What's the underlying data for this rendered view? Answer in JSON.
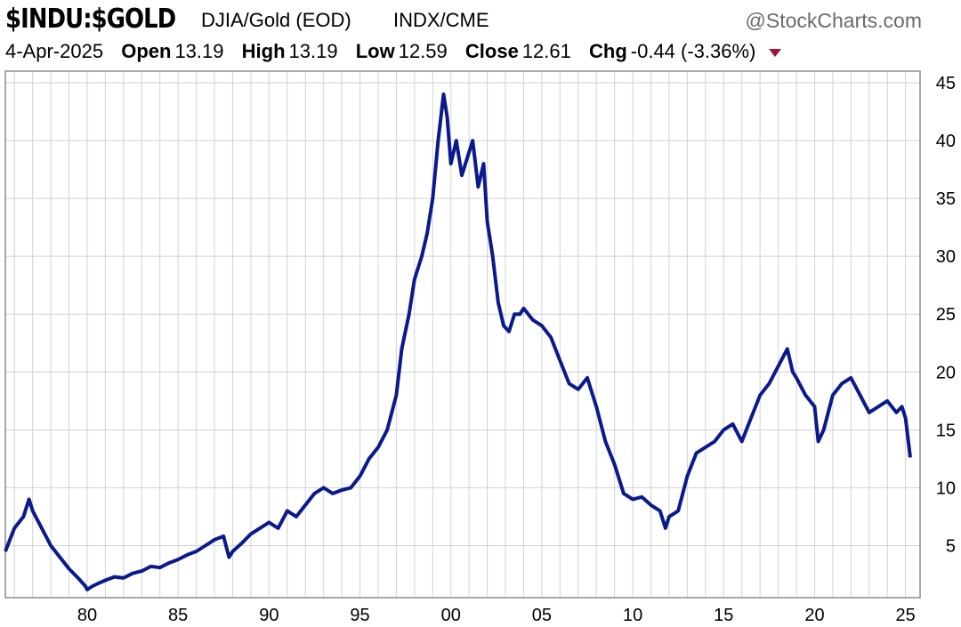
{
  "header": {
    "symbol": "$INDU:$GOLD",
    "description": "DJIA/Gold (EOD)",
    "exchange": "INDX/CME",
    "credit": "@StockCharts.com",
    "date": "4-Apr-2025",
    "open_label": "Open",
    "open": "13.19",
    "high_label": "High",
    "high": "13.19",
    "low_label": "Low",
    "low": "12.59",
    "close_label": "Close",
    "close": "12.61",
    "chg_label": "Chg",
    "chg": "-0.44 (-3.36%)",
    "chg_direction_color": "#a0143c"
  },
  "chart_data": {
    "type": "line",
    "title": "$INDU:$GOLD",
    "series": [
      {
        "color": "#0a1a8c",
        "x": [
          1975.5,
          1976.0,
          1976.5,
          1976.8,
          1977.0,
          1977.5,
          1978.0,
          1978.5,
          1979.0,
          1979.5,
          1979.9,
          1980.0,
          1980.3,
          1980.7,
          1981.0,
          1981.5,
          1982.0,
          1982.5,
          1983.0,
          1983.5,
          1984.0,
          1984.5,
          1985.0,
          1985.5,
          1986.0,
          1986.5,
          1987.0,
          1987.5,
          1987.8,
          1988.0,
          1988.5,
          1989.0,
          1989.5,
          1990.0,
          1990.5,
          1991.0,
          1991.5,
          1992.0,
          1992.5,
          1993.0,
          1993.5,
          1994.0,
          1994.5,
          1995.0,
          1995.5,
          1996.0,
          1996.5,
          1997.0,
          1997.3,
          1997.7,
          1998.0,
          1998.4,
          1998.7,
          1999.0,
          1999.3,
          1999.6,
          1999.8,
          2000.0,
          2000.3,
          2000.6,
          2000.9,
          2001.2,
          2001.5,
          2001.8,
          2002.0,
          2002.3,
          2002.6,
          2002.9,
          2003.2,
          2003.5,
          2003.8,
          2004.0,
          2004.5,
          2005.0,
          2005.5,
          2006.0,
          2006.5,
          2007.0,
          2007.5,
          2008.0,
          2008.5,
          2009.0,
          2009.5,
          2010.0,
          2010.5,
          2011.0,
          2011.5,
          2011.8,
          2012.0,
          2012.5,
          2013.0,
          2013.5,
          2014.0,
          2014.5,
          2015.0,
          2015.5,
          2016.0,
          2016.5,
          2017.0,
          2017.5,
          2018.0,
          2018.5,
          2018.8,
          2019.0,
          2019.5,
          2020.0,
          2020.2,
          2020.5,
          2021.0,
          2021.5,
          2022.0,
          2022.5,
          2023.0,
          2023.5,
          2024.0,
          2024.5,
          2024.8,
          2025.0,
          2025.26
        ],
        "y": [
          4.5,
          6.5,
          7.5,
          9.0,
          8.0,
          6.5,
          5.0,
          4.0,
          3.0,
          2.2,
          1.5,
          1.2,
          1.5,
          1.8,
          2.0,
          2.3,
          2.2,
          2.6,
          2.8,
          3.2,
          3.1,
          3.5,
          3.8,
          4.2,
          4.5,
          5.0,
          5.5,
          5.8,
          4.0,
          4.5,
          5.2,
          6.0,
          6.5,
          7.0,
          6.5,
          8.0,
          7.5,
          8.5,
          9.5,
          10.0,
          9.5,
          9.8,
          10.0,
          11.0,
          12.5,
          13.5,
          15.0,
          18.0,
          22.0,
          25.0,
          28.0,
          30.0,
          32.0,
          35.0,
          40.0,
          44.0,
          42.0,
          38.0,
          40.0,
          37.0,
          38.5,
          40.0,
          36.0,
          38.0,
          33.0,
          30.0,
          26.0,
          24.0,
          23.5,
          25.0,
          25.0,
          25.5,
          24.5,
          24.0,
          23.0,
          21.0,
          19.0,
          18.5,
          19.5,
          17.0,
          14.0,
          12.0,
          9.5,
          9.0,
          9.2,
          8.5,
          8.0,
          6.5,
          7.5,
          8.0,
          11.0,
          13.0,
          13.5,
          14.0,
          15.0,
          15.5,
          14.0,
          16.0,
          18.0,
          19.0,
          20.5,
          22.0,
          20.0,
          19.5,
          18.0,
          17.0,
          14.0,
          15.0,
          18.0,
          19.0,
          19.5,
          18.0,
          16.5,
          17.0,
          17.5,
          16.5,
          17.0,
          16.0,
          12.61
        ]
      }
    ],
    "xlim": [
      1975.5,
      2025.8
    ],
    "ylim": [
      0.5,
      46
    ],
    "x_ticks": [
      1980,
      1985,
      1990,
      1995,
      2000,
      2005,
      2010,
      2015,
      2020,
      2025
    ],
    "x_tick_labels": [
      "80",
      "85",
      "90",
      "95",
      "00",
      "05",
      "10",
      "15",
      "20",
      "25"
    ],
    "y_ticks": [
      5,
      10,
      15,
      20,
      25,
      30,
      35,
      40,
      45
    ],
    "y_tick_labels": [
      "5",
      "10",
      "15",
      "20",
      "25",
      "30",
      "35",
      "40",
      "45"
    ],
    "y_axis_side": "right",
    "grid": true,
    "grid_color": "#d2d2d2"
  }
}
